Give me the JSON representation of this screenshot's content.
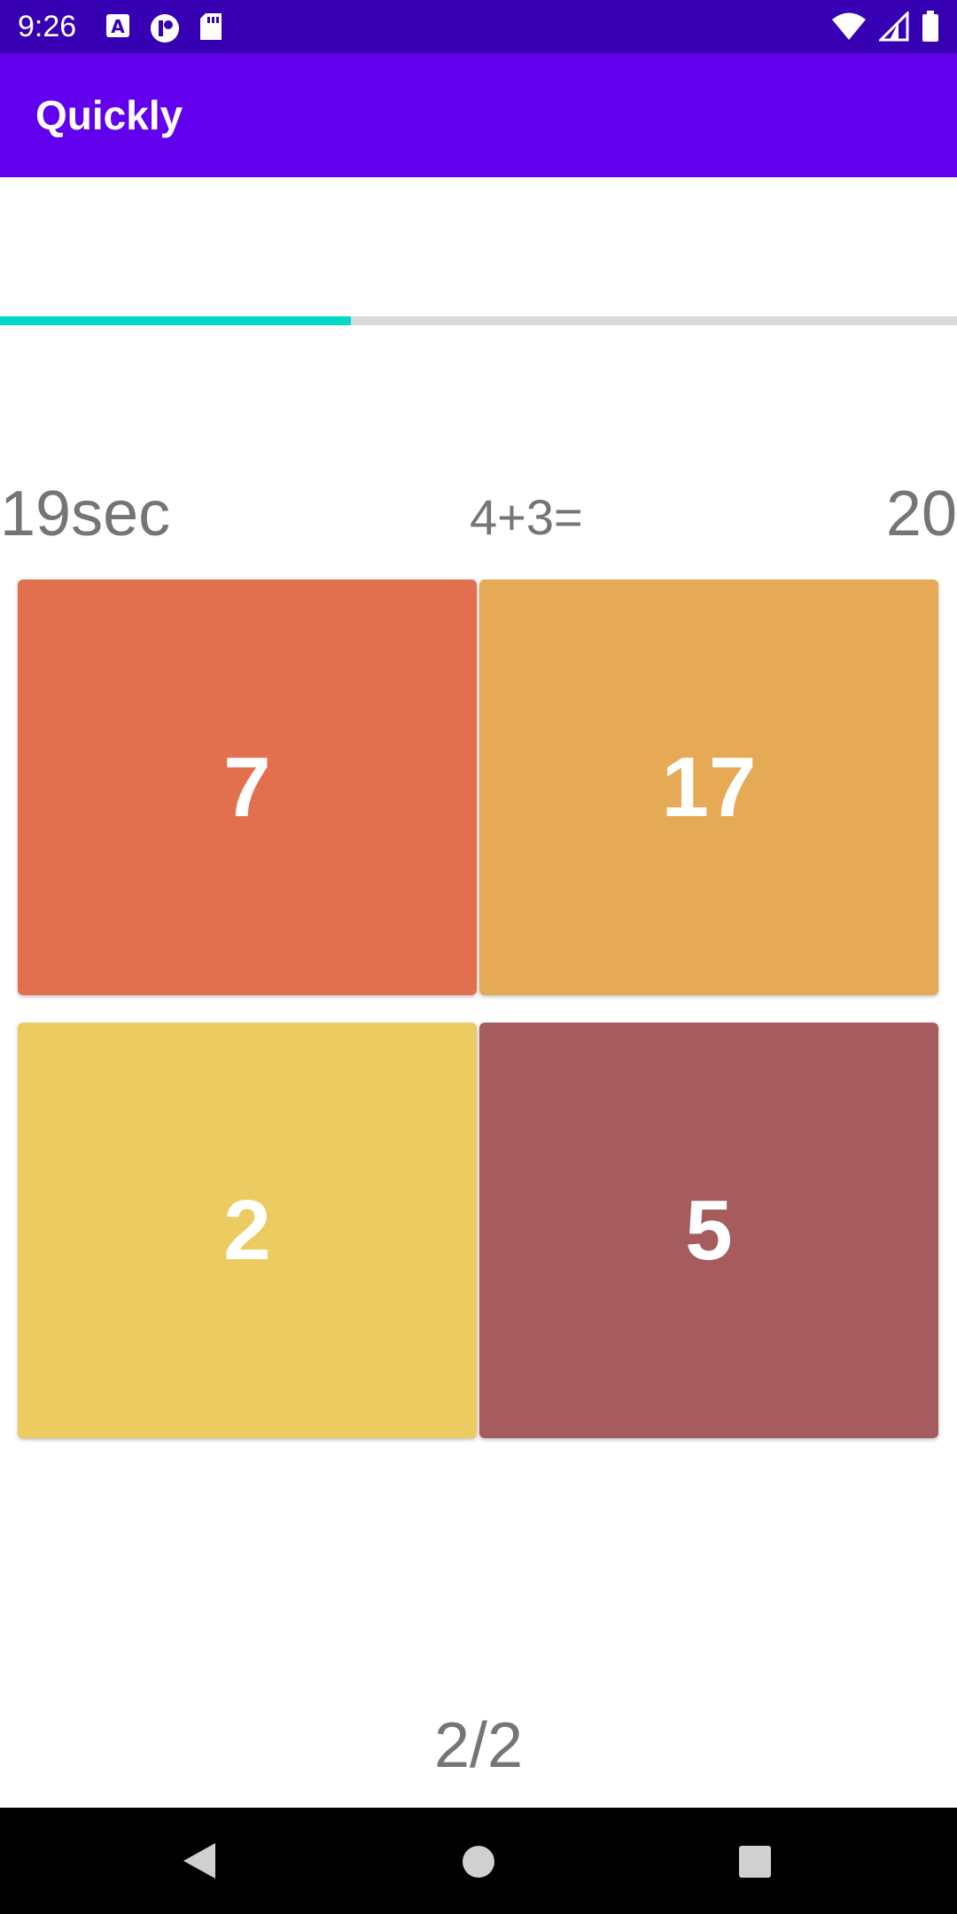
{
  "status_bar": {
    "time": "9:26",
    "left_icons": [
      "a-notification-icon",
      "app-notification-icon",
      "sd-card-icon"
    ],
    "right_icons": [
      "wifi-icon",
      "signal-icon",
      "battery-icon"
    ],
    "background": "#3700b3"
  },
  "app_bar": {
    "title": "Quickly",
    "background": "#6200ee"
  },
  "progress": {
    "fraction": 0.367,
    "fill_color": "#03dac5",
    "track_color": "#d9d9d9"
  },
  "game": {
    "timer": "19sec",
    "question": "4+3=",
    "score": "20"
  },
  "answers": [
    {
      "label": "7",
      "color": "#e2704f"
    },
    {
      "label": "17",
      "color": "#e6aa56"
    },
    {
      "label": "2",
      "color": "#eccb60"
    },
    {
      "label": "5",
      "color": "#a65c5d"
    }
  ],
  "page_indicator": "2/2",
  "nav_bar": {
    "buttons": [
      "back-icon",
      "home-icon",
      "recents-icon"
    ]
  }
}
